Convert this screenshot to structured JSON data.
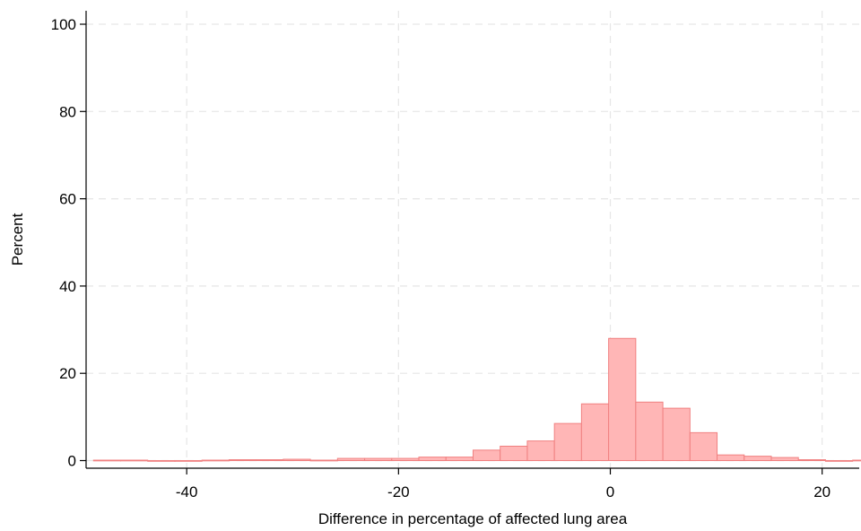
{
  "chart_data": {
    "type": "bar",
    "title": "",
    "xlabel": "Difference in percentage of affected lung area",
    "ylabel": "Percent",
    "xlim": [
      -49.5,
      23.5
    ],
    "ylim": [
      0,
      102
    ],
    "xticks": [
      -40,
      -20,
      0,
      20
    ],
    "yticks": [
      0,
      20,
      40,
      60,
      80,
      100
    ],
    "grid": true,
    "bar_color": "#ffb6b6",
    "bar_edge_color": "#f08080",
    "bin_width": 2.56,
    "bins": [
      {
        "x0": -48.8,
        "value": 0.1
      },
      {
        "x0": -46.24,
        "value": 0.1
      },
      {
        "x0": -43.68,
        "value": 0.0
      },
      {
        "x0": -41.12,
        "value": 0.0
      },
      {
        "x0": -38.56,
        "value": 0.1
      },
      {
        "x0": -36.0,
        "value": 0.2
      },
      {
        "x0": -33.44,
        "value": 0.2
      },
      {
        "x0": -30.88,
        "value": 0.3
      },
      {
        "x0": -28.32,
        "value": 0.1
      },
      {
        "x0": -25.76,
        "value": 0.5
      },
      {
        "x0": -23.2,
        "value": 0.5
      },
      {
        "x0": -20.64,
        "value": 0.5
      },
      {
        "x0": -18.08,
        "value": 0.8
      },
      {
        "x0": -15.52,
        "value": 0.8
      },
      {
        "x0": -12.96,
        "value": 2.4
      },
      {
        "x0": -10.4,
        "value": 3.3
      },
      {
        "x0": -7.84,
        "value": 4.5
      },
      {
        "x0": -5.28,
        "value": 8.5
      },
      {
        "x0": -2.72,
        "value": 13.0
      },
      {
        "x0": -0.16,
        "value": 28.0
      },
      {
        "x0": 2.4,
        "value": 13.4
      },
      {
        "x0": 4.96,
        "value": 12.0
      },
      {
        "x0": 7.52,
        "value": 6.4
      },
      {
        "x0": 10.08,
        "value": 1.3
      },
      {
        "x0": 12.64,
        "value": 1.0
      },
      {
        "x0": 15.2,
        "value": 0.7
      },
      {
        "x0": 17.76,
        "value": 0.2
      },
      {
        "x0": 20.32,
        "value": 0.0
      },
      {
        "x0": 22.88,
        "value": 0.1
      }
    ]
  }
}
